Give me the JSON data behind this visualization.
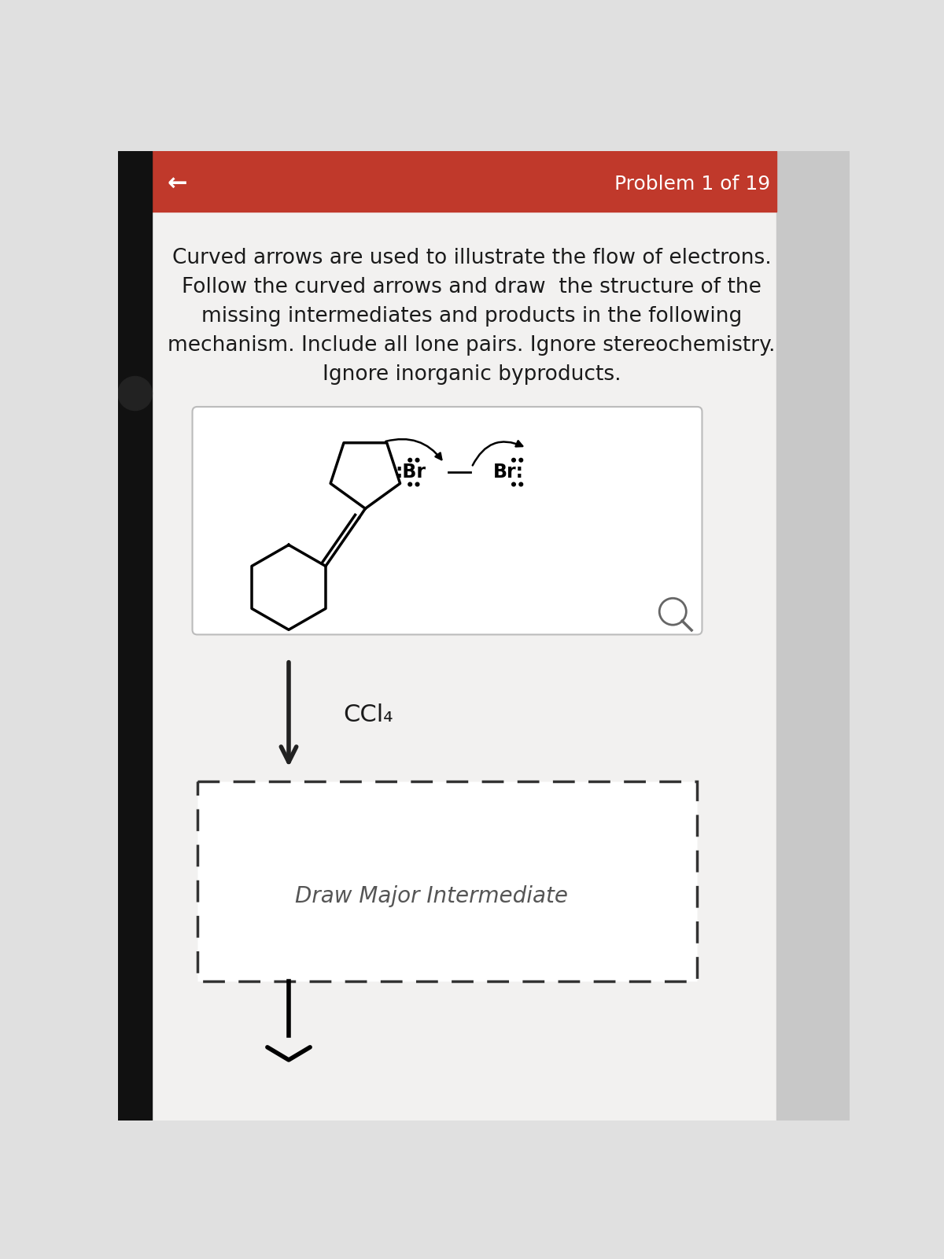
{
  "bg_color": "#e0e0e0",
  "page_bg": "#f0efee",
  "header_color": "#c0392b",
  "header_text": "Problem 1 of 19",
  "header_text_color": "#ffffff",
  "back_arrow": "←",
  "instruction_lines": [
    "Curved arrows are used to illustrate the flow of electrons.",
    "Follow the curved arrows and draw  the structure of the",
    "missing intermediates and products in the following",
    "mechanism. Include all lone pairs. Ignore stereochemistry.",
    "Ignore inorganic byproducts."
  ],
  "solvent_label": "CCl₄",
  "draw_label": "Draw Major Intermediate",
  "text_color": "#1a1a1a",
  "gray_text_color": "#555555"
}
